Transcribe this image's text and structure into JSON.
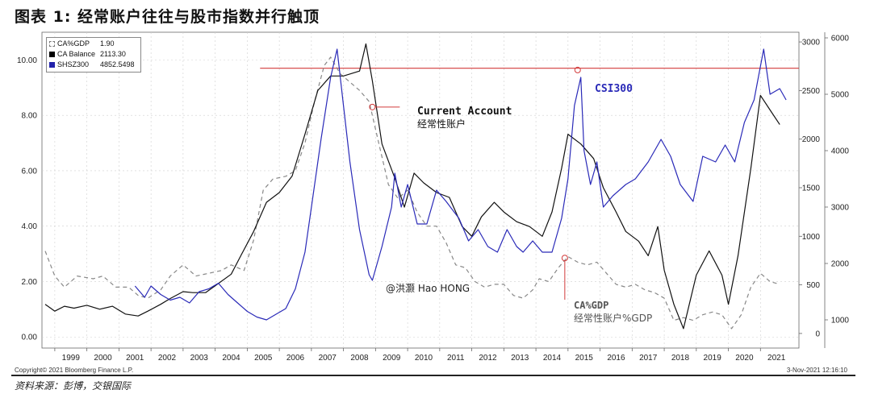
{
  "title": "图表 1: 经常账户往往与股市指数并行触顶",
  "source": "资料来源：彭博，交银国际",
  "copyright": "Copyright© 2021 Bloomberg Finance L.P.",
  "timestamp": "3-Nov-2021 12:16:10",
  "legend": [
    {
      "name": "CA%GDP",
      "value": "1.90",
      "color": "#ffffff"
    },
    {
      "name": "CA Balance",
      "value": "2113.30",
      "color": "#000000"
    },
    {
      "name": "SHSZ300",
      "value": "4852.5498",
      "color": "#2222aa"
    }
  ],
  "annotations": {
    "current_account_en": "Current Account",
    "current_account_cn": "经常性账户",
    "csi300": "CSI300",
    "ca_gdp_en": "CA%GDP",
    "ca_gdp_cn": "经常性账户%GDP",
    "watermark": "@洪灏 Hao HONG"
  },
  "colors": {
    "ca_gdp": "#888888",
    "ca_balance": "#111111",
    "csi300": "#2a2ab8",
    "peak_line": "#d23a3a"
  },
  "chart_data": {
    "type": "line",
    "x_ticks": [
      "1999",
      "2000",
      "2001",
      "2002",
      "2003",
      "2004",
      "2005",
      "2006",
      "2007",
      "2008",
      "2009",
      "2010",
      "2011",
      "2012",
      "2013",
      "2014",
      "2015",
      "2016",
      "2017",
      "2018",
      "2019",
      "2020",
      "2021"
    ],
    "x_range": [
      1998.6,
      2022.2
    ],
    "axes": {
      "left": {
        "ticks": [
          "0.00",
          "2.00",
          "4.00",
          "6.00",
          "8.00",
          "10.00"
        ],
        "range": [
          -0.4,
          11
        ]
      },
      "right_inner": {
        "ticks": [
          "0",
          "500",
          "1000",
          "1500",
          "2000",
          "2500",
          "3000"
        ],
        "range": [
          -150,
          3100
        ]
      },
      "right_outer": {
        "ticks": [
          "1000",
          "2000",
          "3000",
          "4000",
          "5000",
          "6000"
        ],
        "range": [
          500,
          6100
        ]
      }
    },
    "series": [
      {
        "name": "CA%GDP",
        "axis": "left",
        "style": "dashed",
        "points": [
          [
            1998.7,
            3.1
          ],
          [
            1999.0,
            2.2
          ],
          [
            1999.3,
            1.8
          ],
          [
            1999.7,
            2.2
          ],
          [
            2000.2,
            2.1
          ],
          [
            2000.5,
            2.2
          ],
          [
            2000.9,
            1.8
          ],
          [
            2001.3,
            1.8
          ],
          [
            2001.6,
            1.5
          ],
          [
            2001.9,
            1.4
          ],
          [
            2002.3,
            1.7
          ],
          [
            2002.6,
            2.2
          ],
          [
            2003.0,
            2.6
          ],
          [
            2003.4,
            2.2
          ],
          [
            2003.8,
            2.3
          ],
          [
            2004.2,
            2.4
          ],
          [
            2004.5,
            2.6
          ],
          [
            2004.9,
            2.4
          ],
          [
            2005.2,
            3.5
          ],
          [
            2005.5,
            5.3
          ],
          [
            2005.8,
            5.7
          ],
          [
            2006.2,
            5.8
          ],
          [
            2006.5,
            6.0
          ],
          [
            2006.8,
            7.0
          ],
          [
            2007.1,
            8.5
          ],
          [
            2007.4,
            9.8
          ],
          [
            2007.6,
            10.1
          ],
          [
            2007.9,
            9.5
          ],
          [
            2008.2,
            9.2
          ],
          [
            2008.5,
            8.9
          ],
          [
            2008.8,
            8.5
          ],
          [
            2009.1,
            7.0
          ],
          [
            2009.4,
            5.5
          ],
          [
            2009.7,
            5.0
          ],
          [
            2010.0,
            5.3
          ],
          [
            2010.3,
            4.5
          ],
          [
            2010.6,
            4.0
          ],
          [
            2010.9,
            4.0
          ],
          [
            2011.2,
            3.4
          ],
          [
            2011.5,
            2.6
          ],
          [
            2011.8,
            2.5
          ],
          [
            2012.1,
            2.0
          ],
          [
            2012.4,
            1.8
          ],
          [
            2012.7,
            1.9
          ],
          [
            2013.0,
            1.9
          ],
          [
            2013.3,
            1.5
          ],
          [
            2013.6,
            1.4
          ],
          [
            2013.9,
            1.7
          ],
          [
            2014.1,
            2.1
          ],
          [
            2014.4,
            2.0
          ],
          [
            2014.7,
            2.5
          ],
          [
            2015.0,
            2.9
          ],
          [
            2015.3,
            2.7
          ],
          [
            2015.6,
            2.6
          ],
          [
            2015.9,
            2.7
          ],
          [
            2016.2,
            2.3
          ],
          [
            2016.5,
            1.9
          ],
          [
            2016.8,
            1.8
          ],
          [
            2017.1,
            1.9
          ],
          [
            2017.4,
            1.7
          ],
          [
            2017.7,
            1.6
          ],
          [
            2018.0,
            1.4
          ],
          [
            2018.3,
            0.6
          ],
          [
            2018.6,
            0.7
          ],
          [
            2018.9,
            0.6
          ],
          [
            2019.2,
            0.8
          ],
          [
            2019.5,
            0.9
          ],
          [
            2019.8,
            0.8
          ],
          [
            2020.1,
            0.3
          ],
          [
            2020.4,
            0.8
          ],
          [
            2020.7,
            1.8
          ],
          [
            2021.0,
            2.3
          ],
          [
            2021.3,
            2.0
          ],
          [
            2021.6,
            1.9
          ]
        ]
      },
      {
        "name": "CA Balance",
        "axis": "right_inner",
        "style": "solid",
        "points": [
          [
            1998.7,
            300
          ],
          [
            1999.0,
            230
          ],
          [
            1999.3,
            280
          ],
          [
            1999.6,
            260
          ],
          [
            2000.0,
            290
          ],
          [
            2000.4,
            250
          ],
          [
            2000.8,
            280
          ],
          [
            2001.2,
            200
          ],
          [
            2001.6,
            180
          ],
          [
            2001.9,
            230
          ],
          [
            2002.3,
            300
          ],
          [
            2002.6,
            360
          ],
          [
            2003.0,
            430
          ],
          [
            2003.3,
            420
          ],
          [
            2003.7,
            420
          ],
          [
            2004.0,
            490
          ],
          [
            2004.5,
            610
          ],
          [
            2004.8,
            800
          ],
          [
            2005.2,
            1050
          ],
          [
            2005.6,
            1350
          ],
          [
            2006.0,
            1450
          ],
          [
            2006.4,
            1620
          ],
          [
            2006.8,
            2050
          ],
          [
            2007.2,
            2500
          ],
          [
            2007.6,
            2650
          ],
          [
            2008.0,
            2650
          ],
          [
            2008.5,
            2700
          ],
          [
            2008.7,
            2980
          ],
          [
            2008.9,
            2600
          ],
          [
            2009.2,
            1950
          ],
          [
            2009.6,
            1600
          ],
          [
            2009.9,
            1300
          ],
          [
            2010.2,
            1650
          ],
          [
            2010.5,
            1550
          ],
          [
            2010.9,
            1450
          ],
          [
            2011.3,
            1400
          ],
          [
            2011.7,
            1100
          ],
          [
            2012.0,
            1000
          ],
          [
            2012.3,
            1200
          ],
          [
            2012.7,
            1350
          ],
          [
            2013.0,
            1250
          ],
          [
            2013.4,
            1150
          ],
          [
            2013.8,
            1100
          ],
          [
            2014.2,
            1000
          ],
          [
            2014.5,
            1250
          ],
          [
            2014.8,
            1700
          ],
          [
            2015.0,
            2050
          ],
          [
            2015.4,
            1950
          ],
          [
            2015.8,
            1800
          ],
          [
            2016.1,
            1500
          ],
          [
            2016.5,
            1250
          ],
          [
            2016.8,
            1050
          ],
          [
            2017.2,
            950
          ],
          [
            2017.5,
            800
          ],
          [
            2017.8,
            1100
          ],
          [
            2018.0,
            650
          ],
          [
            2018.3,
            300
          ],
          [
            2018.6,
            50
          ],
          [
            2019.0,
            600
          ],
          [
            2019.4,
            850
          ],
          [
            2019.8,
            600
          ],
          [
            2020.0,
            300
          ],
          [
            2020.3,
            800
          ],
          [
            2020.7,
            1700
          ],
          [
            2021.0,
            2450
          ],
          [
            2021.3,
            2300
          ],
          [
            2021.6,
            2150
          ]
        ]
      },
      {
        "name": "SHSZ300",
        "axis": "right_outer",
        "style": "solid",
        "points": [
          [
            2001.5,
            1600
          ],
          [
            2001.8,
            1400
          ],
          [
            2002.0,
            1600
          ],
          [
            2002.3,
            1450
          ],
          [
            2002.6,
            1350
          ],
          [
            2002.9,
            1400
          ],
          [
            2003.2,
            1300
          ],
          [
            2003.5,
            1500
          ],
          [
            2003.8,
            1550
          ],
          [
            2004.1,
            1650
          ],
          [
            2004.4,
            1450
          ],
          [
            2004.7,
            1300
          ],
          [
            2005.0,
            1150
          ],
          [
            2005.3,
            1050
          ],
          [
            2005.6,
            1000
          ],
          [
            2005.9,
            1100
          ],
          [
            2006.2,
            1200
          ],
          [
            2006.5,
            1550
          ],
          [
            2006.8,
            2200
          ],
          [
            2007.0,
            3000
          ],
          [
            2007.3,
            4200
          ],
          [
            2007.6,
            5300
          ],
          [
            2007.8,
            5800
          ],
          [
            2008.0,
            4800
          ],
          [
            2008.2,
            3800
          ],
          [
            2008.5,
            2600
          ],
          [
            2008.8,
            1800
          ],
          [
            2008.9,
            1700
          ],
          [
            2009.2,
            2300
          ],
          [
            2009.5,
            3000
          ],
          [
            2009.6,
            3600
          ],
          [
            2009.8,
            3000
          ],
          [
            2010.0,
            3400
          ],
          [
            2010.3,
            2700
          ],
          [
            2010.6,
            2700
          ],
          [
            2010.9,
            3300
          ],
          [
            2011.2,
            3100
          ],
          [
            2011.6,
            2800
          ],
          [
            2011.9,
            2400
          ],
          [
            2012.2,
            2600
          ],
          [
            2012.5,
            2300
          ],
          [
            2012.8,
            2200
          ],
          [
            2013.1,
            2600
          ],
          [
            2013.4,
            2300
          ],
          [
            2013.6,
            2200
          ],
          [
            2013.9,
            2400
          ],
          [
            2014.2,
            2200
          ],
          [
            2014.5,
            2200
          ],
          [
            2014.8,
            2800
          ],
          [
            2015.0,
            3500
          ],
          [
            2015.2,
            4800
          ],
          [
            2015.4,
            5300
          ],
          [
            2015.5,
            4000
          ],
          [
            2015.7,
            3400
          ],
          [
            2015.9,
            3800
          ],
          [
            2016.1,
            3000
          ],
          [
            2016.4,
            3200
          ],
          [
            2016.8,
            3400
          ],
          [
            2017.1,
            3500
          ],
          [
            2017.5,
            3800
          ],
          [
            2017.9,
            4200
          ],
          [
            2018.2,
            3900
          ],
          [
            2018.5,
            3400
          ],
          [
            2018.9,
            3100
          ],
          [
            2019.2,
            3900
          ],
          [
            2019.6,
            3800
          ],
          [
            2019.9,
            4100
          ],
          [
            2020.2,
            3800
          ],
          [
            2020.5,
            4500
          ],
          [
            2020.8,
            4900
          ],
          [
            2021.1,
            5800
          ],
          [
            2021.3,
            5000
          ],
          [
            2021.6,
            5100
          ],
          [
            2021.8,
            4900
          ]
        ]
      }
    ],
    "reference_line": {
      "axis": "left",
      "y": 9.7,
      "x_range": [
        2005.4,
        2022.2
      ]
    }
  }
}
